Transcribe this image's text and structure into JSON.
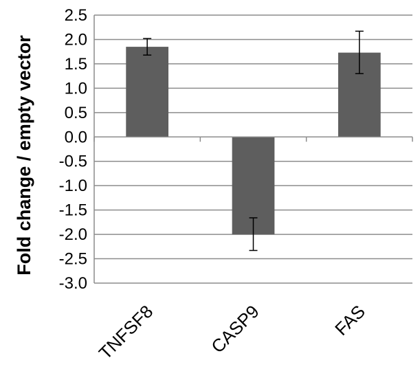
{
  "chart_data": {
    "type": "bar",
    "title": "",
    "xlabel": "",
    "ylabel": "Fold change / empty vector",
    "categories": [
      "TNFSF8",
      "CASP9",
      "FAS"
    ],
    "values": [
      1.85,
      -2.0,
      1.73
    ],
    "error_low": [
      1.68,
      -2.33,
      1.3
    ],
    "error_high": [
      2.02,
      -1.66,
      2.17
    ],
    "ylim": [
      -3.0,
      2.5
    ],
    "ytick_step": 0.5,
    "grid": true,
    "legend": "none",
    "colors": {
      "bar": "#5e5e5e",
      "grid": "#8c8c8c",
      "axis": "#8c8c8c",
      "error": "#000000"
    }
  }
}
